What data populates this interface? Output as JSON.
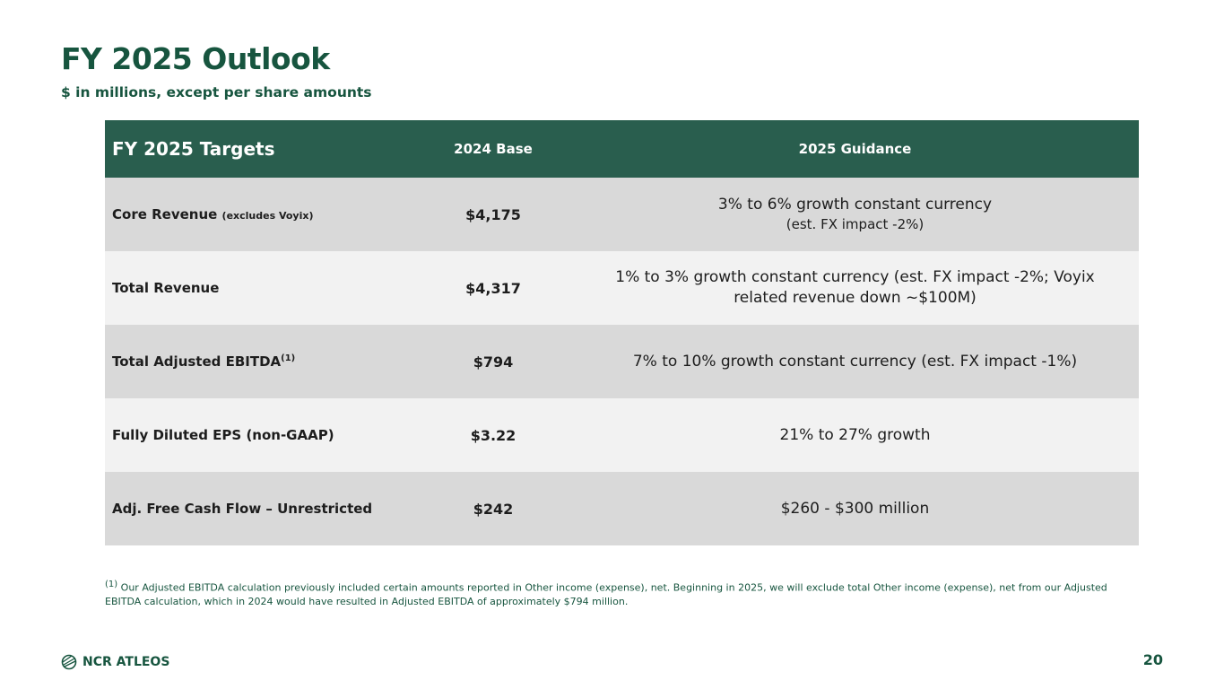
{
  "title": "FY 2025 Outlook",
  "subtitle": "$ in millions, except per share amounts",
  "table": {
    "headers": [
      "FY 2025 Targets",
      "2024 Base",
      "2025 Guidance"
    ],
    "rows": [
      {
        "label": "Core Revenue",
        "label_note": "(excludes Voyix)",
        "base": "$4,175",
        "guidance": "3% to 6% growth constant currency",
        "guidance_line2": "(est. FX impact -2%)"
      },
      {
        "label": "Total Revenue",
        "base": "$4,317",
        "guidance": "1% to 3% growth constant currency (est. FX impact -2%; Voyix related revenue down ~$100M)"
      },
      {
        "label": "Total Adjusted EBITDA",
        "label_sup": "(1)",
        "base": "$794",
        "guidance": "7% to 10% growth constant currency (est. FX impact -1%)"
      },
      {
        "label": "Fully Diluted EPS (non-GAAP)",
        "base": "$3.22",
        "guidance": "21% to 27% growth"
      },
      {
        "label": "Adj. Free Cash Flow – Unrestricted",
        "base": "$242",
        "guidance": "$260 - $300 million"
      }
    ]
  },
  "footnote": {
    "marker": "(1)",
    "text": "Our Adjusted EBITDA calculation previously included certain amounts reported in Other income (expense), net. Beginning in 2025, we will exclude total Other income (expense), net from our Adjusted EBITDA calculation, which in 2024 would have resulted in Adjusted EBITDA of approximately $794 million."
  },
  "logo": {
    "text": "NCR ATLEOS",
    "icon": "globe-icon"
  },
  "page_number": "20"
}
